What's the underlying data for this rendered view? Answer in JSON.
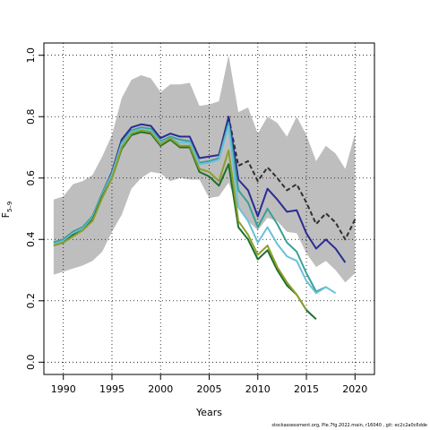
{
  "chart_data": {
    "type": "line",
    "title": "",
    "xlabel": "Years",
    "ylabel": "F",
    "ylabel_sub": "5–9",
    "xlim": [
      1988,
      2022
    ],
    "ylim": [
      -0.04,
      1.04
    ],
    "xticks": [
      1990,
      1995,
      2000,
      2005,
      2010,
      2015,
      2020
    ],
    "yticks": [
      "0.0",
      "0.2",
      "0.4",
      "0.6",
      "0.8",
      "1.0"
    ],
    "grid": true,
    "band": {
      "color": "#bebebe",
      "x": [
        1989,
        1990,
        1991,
        1992,
        1993,
        1994,
        1995,
        1996,
        1997,
        1998,
        1999,
        2000,
        2001,
        2002,
        2003,
        2004,
        2005,
        2006,
        2007,
        2008,
        2009,
        2010,
        2011,
        2012,
        2013,
        2014,
        2015,
        2016,
        2017,
        2018,
        2019,
        2020
      ],
      "upper": [
        0.53,
        0.54,
        0.58,
        0.59,
        0.61,
        0.67,
        0.74,
        0.86,
        0.92,
        0.935,
        0.925,
        0.88,
        0.905,
        0.905,
        0.91,
        0.835,
        0.84,
        0.85,
        1.0,
        0.815,
        0.83,
        0.745,
        0.8,
        0.78,
        0.735,
        0.8,
        0.74,
        0.655,
        0.705,
        0.68,
        0.63,
        0.745
      ],
      "lower": [
        0.285,
        0.295,
        0.305,
        0.315,
        0.33,
        0.36,
        0.425,
        0.48,
        0.565,
        0.6,
        0.62,
        0.615,
        0.59,
        0.6,
        0.595,
        0.595,
        0.535,
        0.54,
        0.585,
        0.5,
        0.46,
        0.43,
        0.47,
        0.46,
        0.425,
        0.42,
        0.355,
        0.31,
        0.33,
        0.3,
        0.26,
        0.29
      ]
    },
    "series": [
      {
        "color": "#2f2f2f",
        "dashed": true,
        "x": [
          2007,
          2008,
          2009,
          2010,
          2011,
          2012,
          2013,
          2014,
          2015,
          2016,
          2017,
          2018,
          2019,
          2020
        ],
        "values": [
          0.8,
          0.64,
          0.655,
          0.59,
          0.635,
          0.6,
          0.56,
          0.58,
          0.52,
          0.45,
          0.485,
          0.455,
          0.4,
          0.465
        ]
      },
      {
        "color": "#2b2b94",
        "x": [
          1989,
          1990,
          1991,
          1992,
          1993,
          1994,
          1995,
          1996,
          1997,
          1998,
          1999,
          2000,
          2001,
          2002,
          2003,
          2004,
          2005,
          2006,
          2007,
          2008,
          2009,
          2010,
          2011,
          2012,
          2013,
          2014,
          2015,
          2016,
          2017,
          2018,
          2019
        ],
        "values": [
          0.39,
          0.4,
          0.425,
          0.44,
          0.475,
          0.55,
          0.62,
          0.725,
          0.765,
          0.775,
          0.77,
          0.73,
          0.745,
          0.735,
          0.735,
          0.665,
          0.67,
          0.675,
          0.8,
          0.595,
          0.56,
          0.475,
          0.565,
          0.53,
          0.49,
          0.495,
          0.42,
          0.37,
          0.4,
          0.37,
          0.325
        ]
      },
      {
        "color": "#3aa095",
        "x": [
          1989,
          1990,
          1991,
          1992,
          1993,
          1994,
          1995,
          1996,
          1997,
          1998,
          1999,
          2000,
          2001,
          2002,
          2003,
          2004,
          2005,
          2006,
          2007,
          2008,
          2009,
          2010,
          2011,
          2012,
          2013,
          2014,
          2015,
          2016,
          2017
        ],
        "values": [
          0.39,
          0.4,
          0.425,
          0.44,
          0.475,
          0.55,
          0.615,
          0.715,
          0.755,
          0.765,
          0.76,
          0.72,
          0.735,
          0.725,
          0.72,
          0.65,
          0.655,
          0.665,
          0.78,
          0.56,
          0.52,
          0.44,
          0.5,
          0.45,
          0.39,
          0.36,
          0.29,
          0.23,
          0.245
        ]
      },
      {
        "color": "#6bc0d9",
        "x": [
          1989,
          1990,
          1991,
          1992,
          1993,
          1994,
          1995,
          1996,
          1997,
          1998,
          1999,
          2000,
          2001,
          2002,
          2003,
          2004,
          2005,
          2006,
          2007,
          2008,
          2009,
          2010,
          2011,
          2012,
          2013,
          2014,
          2015,
          2016,
          2017,
          2018
        ],
        "values": [
          0.385,
          0.395,
          0.42,
          0.435,
          0.47,
          0.545,
          0.61,
          0.71,
          0.75,
          0.76,
          0.755,
          0.715,
          0.73,
          0.715,
          0.715,
          0.645,
          0.65,
          0.66,
          0.77,
          0.505,
          0.46,
          0.39,
          0.44,
          0.385,
          0.345,
          0.33,
          0.265,
          0.225,
          0.245,
          0.225
        ]
      },
      {
        "color": "#1e6e2c",
        "x": [
          1989,
          1990,
          1991,
          1992,
          1993,
          1994,
          1995,
          1996,
          1997,
          1998,
          1999,
          2000,
          2001,
          2002,
          2003,
          2004,
          2005,
          2006,
          2007,
          2008,
          2009,
          2010,
          2011,
          2012,
          2013,
          2014,
          2015,
          2016
        ],
        "values": [
          0.38,
          0.39,
          0.415,
          0.43,
          0.465,
          0.54,
          0.6,
          0.695,
          0.74,
          0.75,
          0.745,
          0.705,
          0.725,
          0.7,
          0.7,
          0.62,
          0.605,
          0.575,
          0.645,
          0.44,
          0.4,
          0.335,
          0.365,
          0.3,
          0.25,
          0.22,
          0.17,
          0.14
        ]
      },
      {
        "color": "#8c9f2a",
        "x": [
          1989,
          1990,
          1991,
          1992,
          1993,
          1994,
          1995,
          1996,
          1997,
          1998,
          1999,
          2000,
          2001,
          2002,
          2003,
          2004,
          2005,
          2006,
          2007,
          2008,
          2009,
          2010,
          2011,
          2012,
          2013,
          2014,
          2015
        ],
        "values": [
          0.38,
          0.39,
          0.41,
          0.43,
          0.46,
          0.535,
          0.6,
          0.7,
          0.745,
          0.755,
          0.75,
          0.71,
          0.73,
          0.705,
          0.705,
          0.63,
          0.62,
          0.59,
          0.69,
          0.46,
          0.415,
          0.35,
          0.38,
          0.31,
          0.26,
          0.22,
          0.17
        ]
      }
    ]
  },
  "footer": {
    "text": "stockassessment.org, Ple.7fg.2022.main, r16040 , git: ec2c2a0c6dde"
  }
}
